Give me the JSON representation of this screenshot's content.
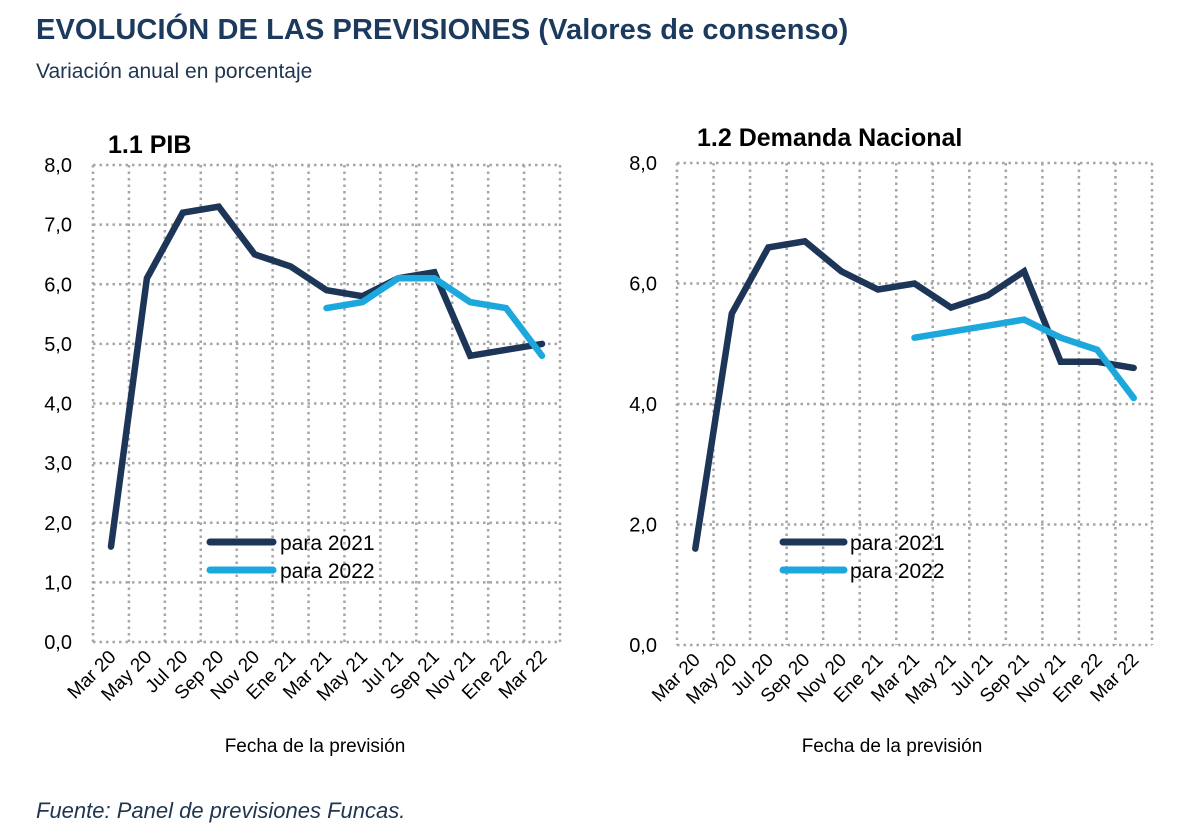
{
  "header": {
    "title": "EVOLUCIÓN DE LAS PREVISIONES (Valores de consenso)",
    "subtitle": "Variación anual en porcentaje"
  },
  "footer": {
    "source": "Fuente: Panel de previsiones Funcas."
  },
  "colors": {
    "series_2021": "#1d3557",
    "series_2022": "#1ca8dd",
    "grid": "#a6a6a6"
  },
  "chart_data": [
    {
      "type": "line",
      "title": "1.1 PIB",
      "xlabel": "Fecha de la previsión",
      "ylabel": "",
      "categories": [
        "Mar 20",
        "May 20",
        "Jul 20",
        "Sep 20",
        "Nov 20",
        "Ene 21",
        "Mar 21",
        "May 21",
        "Jul 21",
        "Sep 21",
        "Nov 21",
        "Ene 22",
        "Mar 22"
      ],
      "ylim": [
        0,
        8
      ],
      "yticks": [
        0,
        1,
        2,
        3,
        4,
        5,
        6,
        7,
        8
      ],
      "ytick_labels": [
        "0,0",
        "1,0",
        "2,0",
        "3,0",
        "4,0",
        "5,0",
        "6,0",
        "7,0",
        "8,0"
      ],
      "grid": true,
      "legend_position": "lower-center",
      "series": [
        {
          "name": "para 2021",
          "values": [
            1.6,
            6.1,
            7.2,
            7.3,
            6.5,
            6.3,
            5.9,
            5.8,
            6.1,
            6.2,
            4.8,
            4.9,
            5.0
          ]
        },
        {
          "name": "para 2022",
          "values": [
            null,
            null,
            null,
            null,
            null,
            null,
            5.6,
            5.7,
            6.1,
            6.1,
            5.7,
            5.6,
            4.8
          ]
        }
      ]
    },
    {
      "type": "line",
      "title": "1.2 Demanda Nacional",
      "xlabel": "Fecha de la previsión",
      "ylabel": "",
      "categories": [
        "Mar 20",
        "May 20",
        "Jul 20",
        "Sep 20",
        "Nov 20",
        "Ene 21",
        "Mar 21",
        "May 21",
        "Jul 21",
        "Sep 21",
        "Nov 21",
        "Ene 22",
        "Mar 22"
      ],
      "ylim": [
        0,
        8
      ],
      "yticks": [
        0,
        2,
        4,
        6,
        8
      ],
      "ytick_labels": [
        "0,0",
        "2,0",
        "4,0",
        "6,0",
        "8,0"
      ],
      "grid": true,
      "legend_position": "lower-center",
      "series": [
        {
          "name": "para 2021",
          "values": [
            1.6,
            5.5,
            6.6,
            6.7,
            6.2,
            5.9,
            6.0,
            5.6,
            5.8,
            6.2,
            4.7,
            4.7,
            4.6
          ]
        },
        {
          "name": "para 2022",
          "values": [
            null,
            null,
            null,
            null,
            null,
            null,
            5.1,
            5.2,
            5.3,
            5.4,
            5.1,
            4.9,
            4.1
          ]
        }
      ]
    }
  ]
}
